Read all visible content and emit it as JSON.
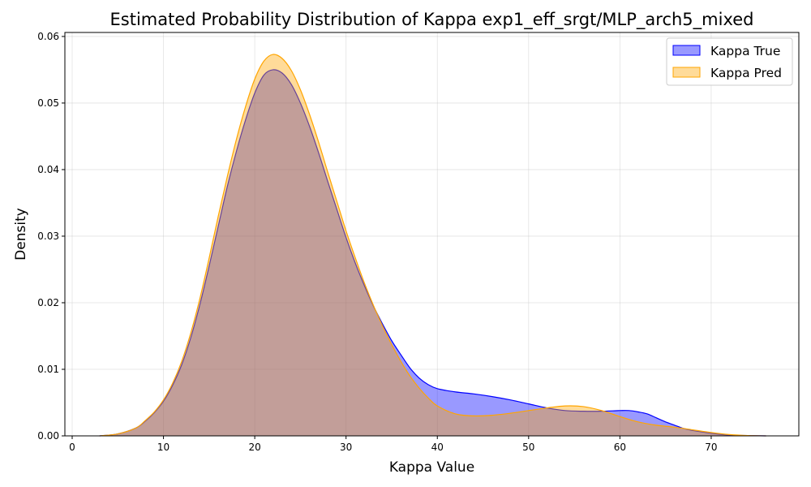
{
  "chart_data": {
    "type": "area",
    "title": "Estimated Probability Distribution of Kappa exp1_eff_srgt/MLP_arch5_mixed",
    "xlabel": "Kappa Value",
    "ylabel": "Density",
    "xlim": [
      -0.8,
      79.6
    ],
    "ylim": [
      0,
      0.0606
    ],
    "xticks": [
      0,
      10,
      20,
      30,
      40,
      50,
      60,
      70
    ],
    "yticks": [
      0.0,
      0.01,
      0.02,
      0.03,
      0.04,
      0.05,
      0.06
    ],
    "ytick_labels": [
      "0.00",
      "0.01",
      "0.02",
      "0.03",
      "0.04",
      "0.05",
      "0.06"
    ],
    "grid": true,
    "legend_position": "top-right",
    "series": [
      {
        "name": "Kappa True",
        "line_color": "#0000ff",
        "fill_color": "#0000ff",
        "fill_opacity": 0.4,
        "x": [
          3,
          5,
          7,
          8,
          9,
          10,
          11,
          12,
          13,
          14,
          15,
          16,
          17,
          18,
          19,
          20,
          21,
          22,
          23,
          24,
          25,
          26,
          27,
          28,
          29,
          30,
          31,
          32,
          33,
          34,
          35,
          36,
          37,
          38,
          39,
          40,
          42,
          44,
          46,
          48,
          50,
          52,
          54,
          56,
          58,
          60,
          61,
          62,
          63,
          64,
          65,
          66,
          67,
          68,
          70,
          72,
          74,
          76
        ],
        "y": [
          0.0,
          0.0003,
          0.0012,
          0.0022,
          0.0035,
          0.0052,
          0.0076,
          0.0107,
          0.0148,
          0.0198,
          0.0255,
          0.0315,
          0.0375,
          0.0428,
          0.0475,
          0.0515,
          0.0542,
          0.055,
          0.0545,
          0.0528,
          0.05,
          0.0465,
          0.0425,
          0.0382,
          0.034,
          0.0298,
          0.026,
          0.0226,
          0.0195,
          0.0168,
          0.0143,
          0.0122,
          0.0102,
          0.0087,
          0.0077,
          0.0071,
          0.0066,
          0.0063,
          0.0059,
          0.0054,
          0.0048,
          0.0042,
          0.0038,
          0.0037,
          0.0037,
          0.0038,
          0.0038,
          0.0036,
          0.0033,
          0.0027,
          0.0021,
          0.0016,
          0.0011,
          0.0008,
          0.0004,
          0.0001,
          5e-05,
          0.0
        ]
      },
      {
        "name": "Kappa Pred",
        "line_color": "#ffa500",
        "fill_color": "#ffa500",
        "fill_opacity": 0.4,
        "x": [
          3,
          5,
          7,
          8,
          9,
          10,
          11,
          12,
          13,
          14,
          15,
          16,
          17,
          18,
          19,
          20,
          21,
          22,
          23,
          24,
          25,
          26,
          27,
          28,
          29,
          30,
          31,
          32,
          33,
          34,
          35,
          36,
          37,
          38,
          39,
          40,
          42,
          44,
          46,
          48,
          50,
          52,
          54,
          56,
          58,
          60,
          62,
          64,
          66,
          68,
          70,
          72,
          74,
          76
        ],
        "y": [
          0.0,
          0.0003,
          0.0012,
          0.0023,
          0.0036,
          0.0054,
          0.0079,
          0.0112,
          0.0155,
          0.0207,
          0.0267,
          0.033,
          0.039,
          0.0446,
          0.0495,
          0.0536,
          0.0563,
          0.0573,
          0.0567,
          0.0549,
          0.052,
          0.0483,
          0.0441,
          0.0396,
          0.0352,
          0.0308,
          0.0268,
          0.023,
          0.0196,
          0.0165,
          0.0137,
          0.0112,
          0.009,
          0.0072,
          0.0057,
          0.0045,
          0.0033,
          0.003,
          0.0031,
          0.0034,
          0.0038,
          0.0042,
          0.0045,
          0.0044,
          0.0038,
          0.0029,
          0.0021,
          0.0016,
          0.0013,
          0.0009,
          0.0005,
          0.0002,
          5e-05,
          0.0
        ]
      }
    ]
  }
}
